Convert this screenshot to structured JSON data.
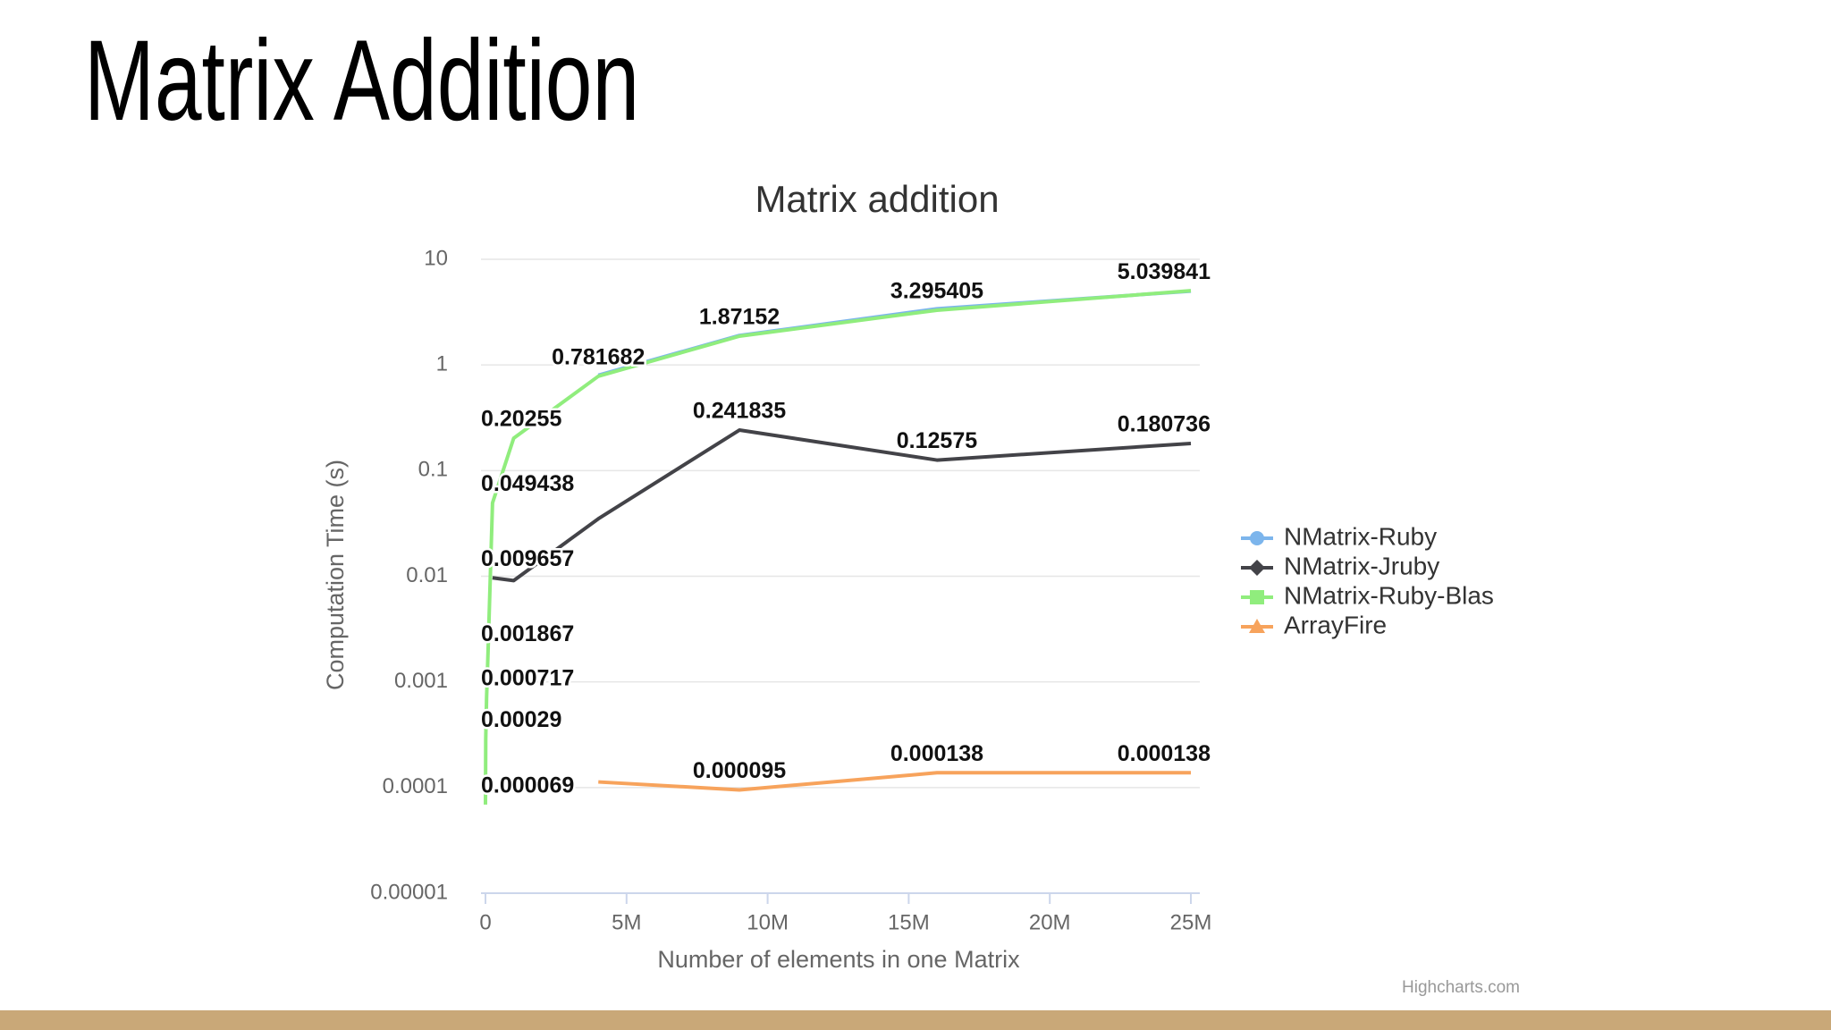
{
  "slide_title": "Matrix Addition",
  "chart_data": {
    "type": "line",
    "title": "Matrix addition",
    "xlabel": "Number of elements in one Matrix",
    "ylabel": "Computation Time (s)",
    "credit": "Highcharts.com",
    "log_y": true,
    "grid": true,
    "legend": "right",
    "xlim": [
      0,
      25000000
    ],
    "xticks": [
      0,
      {
        "value": 5000000,
        "label": "5M"
      },
      {
        "value": 10000000,
        "label": "10M"
      },
      {
        "value": 15000000,
        "label": "15M"
      },
      {
        "value": 20000000,
        "label": "20M"
      },
      {
        "value": 25000000,
        "label": "25M"
      }
    ],
    "ylim": [
      1e-05,
      10
    ],
    "yticks": [
      1e-05,
      0.0001,
      0.001,
      0.01,
      0.1,
      1,
      10
    ],
    "series": [
      {
        "name": "NMatrix-Ruby",
        "color": "#7cb5ec",
        "x": [
          4000000,
          9000000,
          16000000,
          25000000
        ],
        "values": [
          0.8,
          1.9,
          3.4,
          5.0
        ]
      },
      {
        "name": "NMatrix-Jruby",
        "color": "#434348",
        "x": [
          250000,
          1000000,
          4000000,
          9000000,
          16000000,
          25000000
        ],
        "values": [
          0.009657,
          0.0091,
          0.035,
          0.241835,
          0.12575,
          0.180736
        ],
        "value_labels": [
          "0.009657",
          null,
          null,
          "0.241835",
          "0.12575",
          "0.180736"
        ]
      },
      {
        "name": "NMatrix-Ruby-Blas",
        "color": "#90ed7d",
        "x": [
          100,
          10000,
          40000,
          90000,
          250000,
          1000000,
          4000000,
          9000000,
          16000000,
          25000000
        ],
        "values": [
          6.9e-05,
          0.00029,
          0.000717,
          0.001867,
          0.049438,
          0.20255,
          0.781682,
          1.87152,
          3.295405,
          5.039841
        ],
        "value_labels": [
          "0.000069",
          "0.00029",
          "0.000717",
          "0.001867",
          "0.049438",
          "0.20255",
          "0.781682",
          "1.87152",
          "3.295405",
          "5.039841"
        ]
      },
      {
        "name": "ArrayFire",
        "color": "#f7a35c",
        "x": [
          4000000,
          9000000,
          16000000,
          25000000
        ],
        "values": [
          0.000113,
          9.5e-05,
          0.000138,
          0.000138
        ],
        "value_labels": [
          null,
          "0.000095",
          "0.000138",
          "0.000138"
        ]
      }
    ]
  }
}
